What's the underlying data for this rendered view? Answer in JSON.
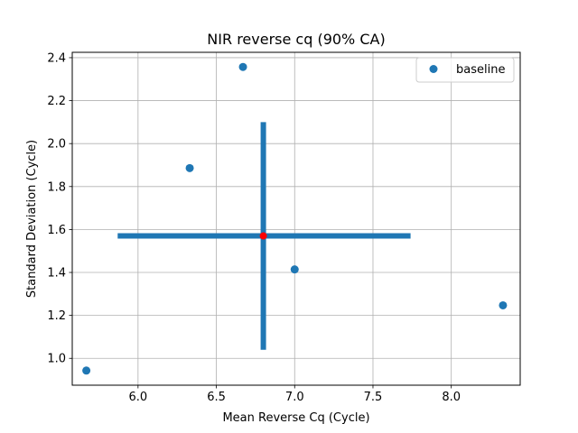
{
  "chart_data": {
    "type": "scatter",
    "title": "NIR reverse cq (90% CA)",
    "xlabel": "Mean Reverse Cq (Cycle)",
    "ylabel": "Standard Deviation (Cycle)",
    "xlim": [
      5.58,
      8.44
    ],
    "ylim": [
      0.875,
      2.425
    ],
    "xticks": [
      6.0,
      6.5,
      7.0,
      7.5,
      8.0
    ],
    "xtick_labels": [
      "6.0",
      "6.5",
      "7.0",
      "7.5",
      "8.0"
    ],
    "yticks": [
      1.0,
      1.2,
      1.4,
      1.6,
      1.8,
      2.0,
      2.2,
      2.4
    ],
    "ytick_labels": [
      "1.0",
      "1.2",
      "1.4",
      "1.6",
      "1.8",
      "2.0",
      "2.2",
      "2.4"
    ],
    "grid": true,
    "legend_position": "top-right",
    "series": [
      {
        "name": "baseline",
        "color": "#1f77b4",
        "points": [
          {
            "x": 5.67,
            "y": 0.943
          },
          {
            "x": 6.33,
            "y": 1.886
          },
          {
            "x": 6.67,
            "y": 2.357
          },
          {
            "x": 7.0,
            "y": 1.414
          },
          {
            "x": 8.33,
            "y": 1.247
          }
        ]
      }
    ],
    "center": {
      "x": 6.8,
      "y": 1.57,
      "color": "#ff0000"
    },
    "confidence_interval": {
      "color": "#1f77b4",
      "x_range": [
        5.87,
        7.74
      ],
      "y_range": [
        1.04,
        2.1
      ]
    }
  }
}
